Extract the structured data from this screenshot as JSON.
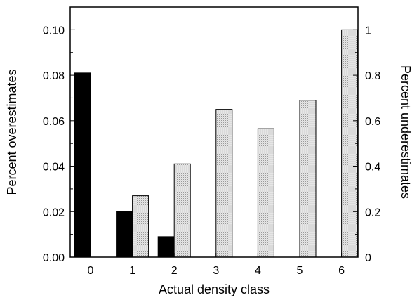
{
  "chart_data": {
    "type": "bar",
    "xlabel": "Actual density class",
    "ylabel_left": "Percent overestimates",
    "ylabel_right": "Percent underestimates",
    "categories": [
      "0",
      "1",
      "2",
      "3",
      "4",
      "5",
      "6"
    ],
    "ylim_left": [
      0,
      0.11
    ],
    "ylim_right": [
      0,
      1.1
    ],
    "yticks_left": [
      "0.00",
      "0.02",
      "0.04",
      "0.06",
      "0.08",
      "0.10"
    ],
    "yticks_right": [
      "0",
      "0.2",
      "0.4",
      "0.6",
      "0.8",
      "1"
    ],
    "series": [
      {
        "axis": "left",
        "color": "#000000",
        "values": [
          0.081,
          0.02,
          0.009,
          0,
          0,
          0,
          0
        ]
      },
      {
        "axis": "right",
        "color": "#d9d9d9",
        "values": [
          0,
          0.27,
          0.41,
          0.65,
          0.565,
          0.69,
          1.0
        ]
      }
    ],
    "grid": false
  }
}
